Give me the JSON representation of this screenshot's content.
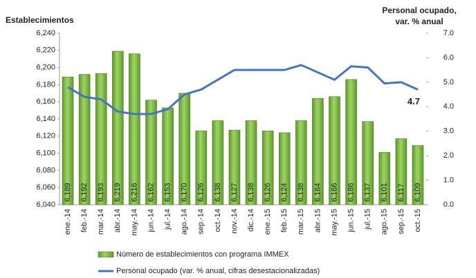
{
  "chart_data": {
    "type": "bar-line",
    "ylabel": "Establecimientos",
    "y2label": [
      "Personal ocupado,",
      "var.  % anual"
    ],
    "categories": [
      "ene.-14",
      "feb.-14",
      "mar.-14",
      "abr.-14",
      "may.-14",
      "jun.-14",
      "jul.-14",
      "ago.-14",
      "sep.-14",
      "oct.-14",
      "nov.-14",
      "dic.-14",
      "ene.-15",
      "feb.-15",
      "mar.-15",
      "abr.-15",
      "may.-15",
      "jun.-15",
      "jul.-15",
      "ago.-15",
      "sep.-15",
      "oct.-15"
    ],
    "series": [
      {
        "name": "Número de establecimientos con programa IMMEX",
        "type": "bar",
        "color": "#7dbb3c",
        "values": [
          6189,
          6192,
          6193,
          6219,
          6216,
          6162,
          6153,
          6170,
          6126,
          6138,
          6127,
          6138,
          6126,
          6124,
          6138,
          6164,
          6166,
          6186,
          6137,
          6101,
          6117,
          6109
        ],
        "value_labels": [
          "6,189",
          "6,192",
          "6,193",
          "6,219",
          "6,216",
          "6,162",
          "6,153",
          "6,170",
          "6,126",
          "6,138",
          "6,127",
          "6,138",
          "6,126",
          "6,124",
          "6,138",
          "6,164",
          "6,166",
          "6,186",
          "6,137",
          "6,101",
          "6,117",
          "6,109"
        ]
      },
      {
        "name": "Personal ocupado (var. % anual, cifras desestacionalizadas)",
        "type": "line",
        "axis": "y2",
        "color": "#4472c4",
        "values": [
          4.8,
          4.4,
          4.3,
          3.8,
          3.7,
          3.7,
          3.9,
          4.5,
          4.7,
          5.1,
          5.5,
          5.5,
          5.5,
          5.5,
          5.7,
          5.4,
          5.1,
          5.65,
          5.6,
          4.95,
          5.0,
          4.7
        ]
      }
    ],
    "annotation": "4.7",
    "ylim": [
      6040,
      6240
    ],
    "yticks": [
      {
        "value": 6040,
        "label": "6,040"
      },
      {
        "value": 6060,
        "label": "6,060"
      },
      {
        "value": 6080,
        "label": "6,080"
      },
      {
        "value": 6100,
        "label": "6,100"
      },
      {
        "value": 6120,
        "label": "6,120"
      },
      {
        "value": 6140,
        "label": "6,140"
      },
      {
        "value": 6160,
        "label": "6,160"
      },
      {
        "value": 6180,
        "label": "6,180"
      },
      {
        "value": 6200,
        "label": "6,200"
      },
      {
        "value": 6220,
        "label": "6,220"
      },
      {
        "value": 6240,
        "label": "6,240"
      }
    ],
    "y2lim": [
      0,
      7
    ],
    "y2ticks": [
      {
        "value": 0,
        "label": "0.0"
      },
      {
        "value": 1,
        "label": "1.0"
      },
      {
        "value": 2,
        "label": "2.0"
      },
      {
        "value": 3,
        "label": "3.0"
      },
      {
        "value": 4,
        "label": "4.0"
      },
      {
        "value": 5,
        "label": "5.0"
      },
      {
        "value": 6,
        "label": "6.0"
      },
      {
        "value": 7,
        "label": "7.0"
      }
    ]
  }
}
